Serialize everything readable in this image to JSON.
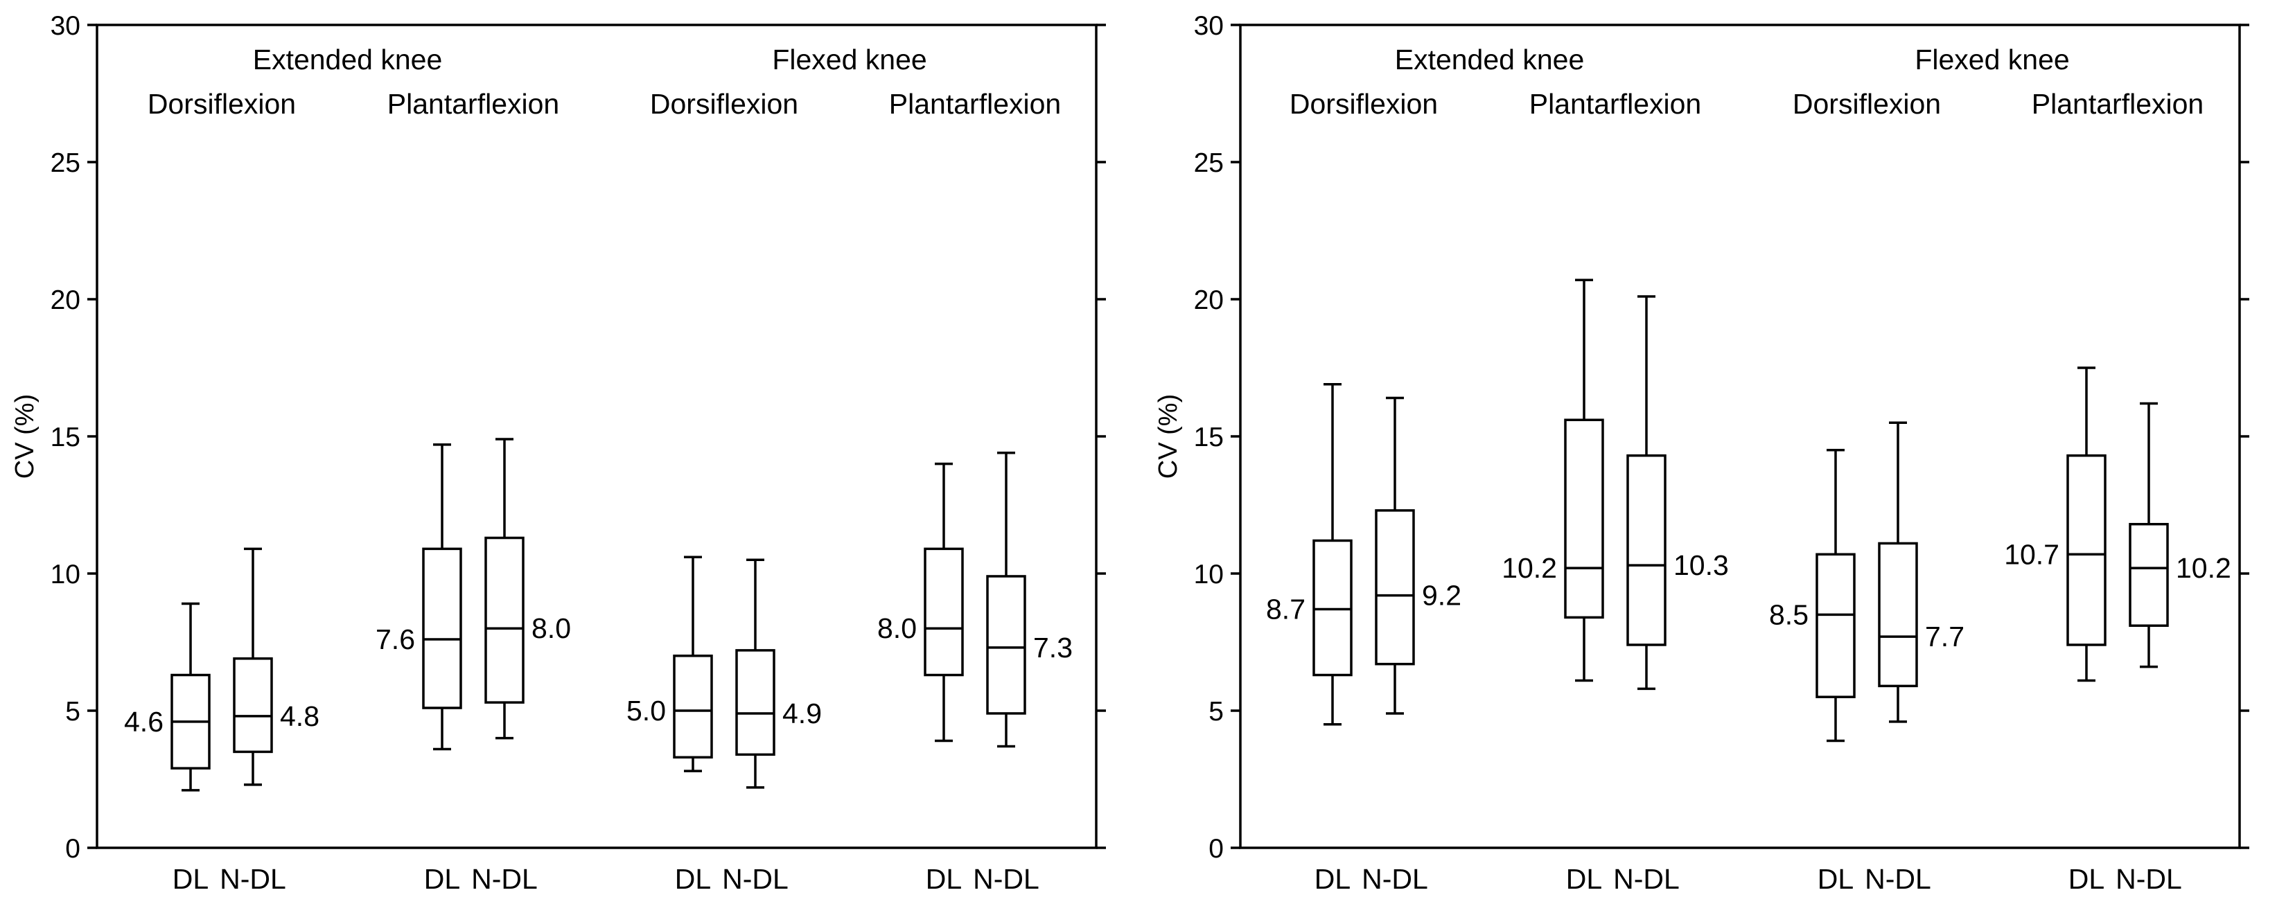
{
  "chart_data": [
    {
      "type": "box",
      "panel": "left",
      "ylabel": "CV (%)",
      "ylim": [
        0,
        30
      ],
      "yticks": [
        0,
        5,
        10,
        15,
        20,
        25,
        30
      ],
      "conditions": [
        "Extended knee",
        "Flexed knee"
      ],
      "movements": [
        "Dorsiflexion",
        "Plantarflexion",
        "Dorsiflexion",
        "Plantarflexion"
      ],
      "legs": [
        "DL",
        "N-DL"
      ],
      "series": [
        {
          "group": 0,
          "leg": "DL",
          "min": 2.1,
          "q1": 2.9,
          "median": 4.6,
          "q3": 6.3,
          "max": 8.9,
          "label": "4.6"
        },
        {
          "group": 0,
          "leg": "N-DL",
          "min": 2.3,
          "q1": 3.5,
          "median": 4.8,
          "q3": 6.9,
          "max": 10.9,
          "label": "4.8"
        },
        {
          "group": 1,
          "leg": "DL",
          "min": 3.6,
          "q1": 5.1,
          "median": 7.6,
          "q3": 10.9,
          "max": 14.7,
          "label": "7.6"
        },
        {
          "group": 1,
          "leg": "N-DL",
          "min": 4.0,
          "q1": 5.3,
          "median": 8.0,
          "q3": 11.3,
          "max": 14.9,
          "label": "8.0"
        },
        {
          "group": 2,
          "leg": "DL",
          "min": 2.8,
          "q1": 3.3,
          "median": 5.0,
          "q3": 7.0,
          "max": 10.6,
          "label": "5.0"
        },
        {
          "group": 2,
          "leg": "N-DL",
          "min": 2.2,
          "q1": 3.4,
          "median": 4.9,
          "q3": 7.2,
          "max": 10.5,
          "label": "4.9"
        },
        {
          "group": 3,
          "leg": "DL",
          "min": 3.9,
          "q1": 6.3,
          "median": 8.0,
          "q3": 10.9,
          "max": 14.0,
          "label": "8.0"
        },
        {
          "group": 3,
          "leg": "N-DL",
          "min": 3.7,
          "q1": 4.9,
          "median": 7.3,
          "q3": 9.9,
          "max": 14.4,
          "label": "7.3"
        }
      ]
    },
    {
      "type": "box",
      "panel": "right",
      "ylabel": "CV (%)",
      "ylim": [
        0,
        30
      ],
      "yticks": [
        0,
        5,
        10,
        15,
        20,
        25,
        30
      ],
      "conditions": [
        "Extended knee",
        "Flexed knee"
      ],
      "movements": [
        "Dorsiflexion",
        "Plantarflexion",
        "Dorsiflexion",
        "Plantarflexion"
      ],
      "legs": [
        "DL",
        "N-DL"
      ],
      "series": [
        {
          "group": 0,
          "leg": "DL",
          "min": 4.5,
          "q1": 6.3,
          "median": 8.7,
          "q3": 11.2,
          "max": 16.9,
          "label": "8.7"
        },
        {
          "group": 0,
          "leg": "N-DL",
          "min": 4.9,
          "q1": 6.7,
          "median": 9.2,
          "q3": 12.3,
          "max": 16.4,
          "label": "9.2"
        },
        {
          "group": 1,
          "leg": "DL",
          "min": 6.1,
          "q1": 8.4,
          "median": 10.2,
          "q3": 15.6,
          "max": 20.7,
          "label": "10.2"
        },
        {
          "group": 1,
          "leg": "N-DL",
          "min": 5.8,
          "q1": 7.4,
          "median": 10.3,
          "q3": 14.3,
          "max": 20.1,
          "label": "10.3"
        },
        {
          "group": 2,
          "leg": "DL",
          "min": 3.9,
          "q1": 5.5,
          "median": 8.5,
          "q3": 10.7,
          "max": 14.5,
          "label": "8.5"
        },
        {
          "group": 2,
          "leg": "N-DL",
          "min": 4.6,
          "q1": 5.9,
          "median": 7.7,
          "q3": 11.1,
          "max": 15.5,
          "label": "7.7"
        },
        {
          "group": 3,
          "leg": "DL",
          "min": 6.1,
          "q1": 7.4,
          "median": 10.7,
          "q3": 14.3,
          "max": 17.5,
          "label": "10.7"
        },
        {
          "group": 3,
          "leg": "N-DL",
          "min": 6.6,
          "q1": 8.1,
          "median": 10.2,
          "q3": 11.8,
          "max": 16.2,
          "label": "10.2"
        }
      ]
    }
  ]
}
